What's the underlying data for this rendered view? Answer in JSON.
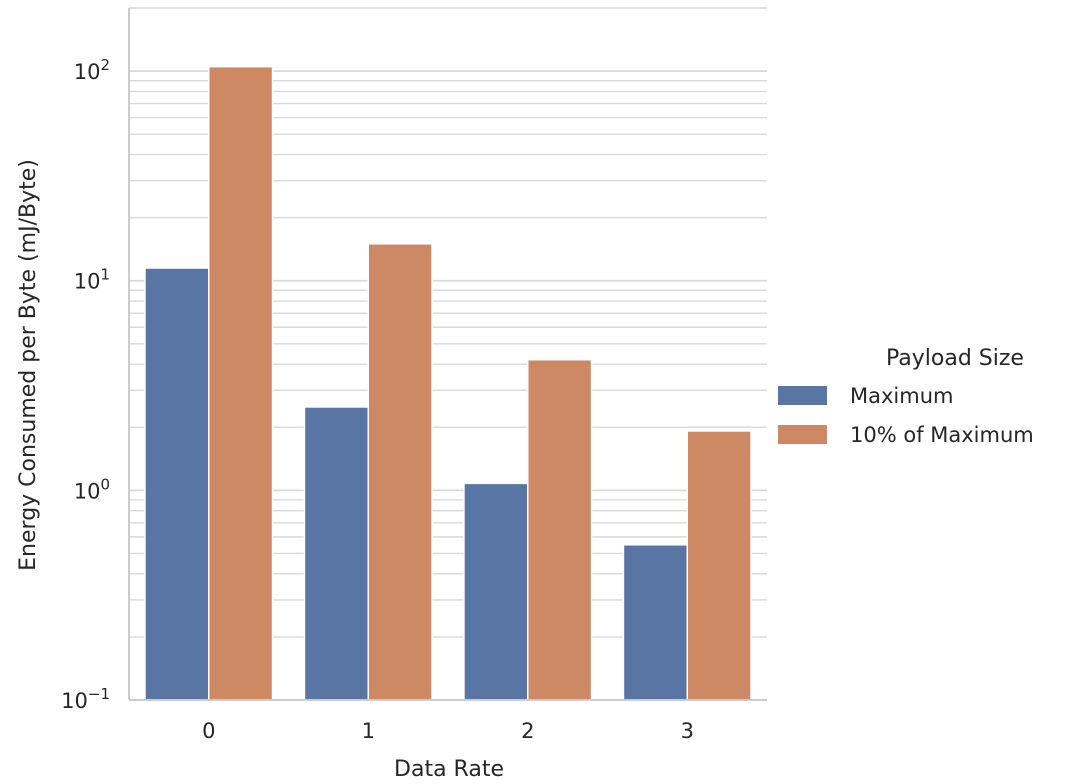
{
  "chart_data": {
    "type": "bar",
    "xlabel": "Data Rate",
    "ylabel": "Energy Consumed per Byte  (mJ/Byte)",
    "yscale": "log",
    "ylim": [
      0.1,
      200
    ],
    "categories": [
      "0",
      "1",
      "2",
      "3"
    ],
    "series": [
      {
        "name": "Maximum",
        "values": [
          11.5,
          2.5,
          1.08,
          0.55
        ],
        "color": "#5975a4"
      },
      {
        "name": "10% of Maximum",
        "values": [
          105,
          15,
          4.2,
          1.92
        ],
        "color": "#cc8963"
      }
    ],
    "yticks": [
      {
        "base": "10",
        "exp": "2",
        "value": 100
      },
      {
        "base": "10",
        "exp": "1",
        "value": 10
      },
      {
        "base": "10",
        "exp": "0",
        "value": 1
      },
      {
        "base": "10",
        "exp": "−1",
        "value": 0.1
      }
    ],
    "legend": {
      "title": "Payload Size",
      "placement": "right"
    },
    "grid": true
  }
}
